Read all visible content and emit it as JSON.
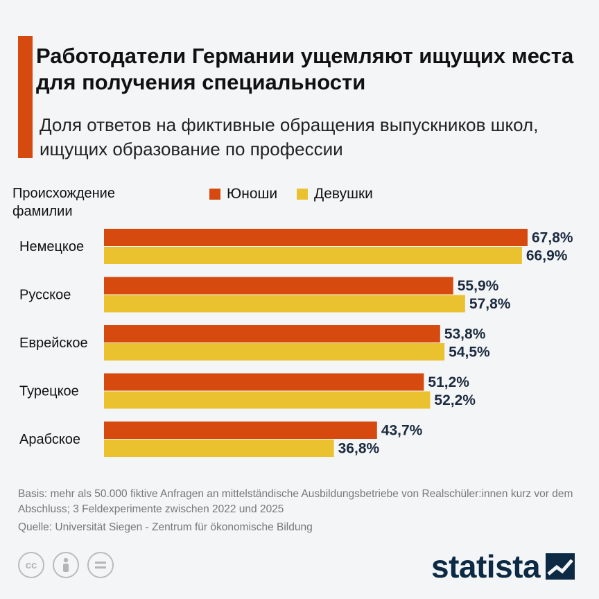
{
  "header": {
    "title": "Работодатели Германии ущемляют ищущих места для получения специальности",
    "subtitle": "Доля ответов на фиктивные обращения выпускников школ, ищущих образование по профессии"
  },
  "chart_data": {
    "type": "bar",
    "orientation": "horizontal",
    "category_axis_label": "Происхождение фамилии",
    "categories": [
      "Немецкое",
      "Русское",
      "Еврейское",
      "Турецкое",
      "Арабское"
    ],
    "series": [
      {
        "name": "Юноши",
        "color": "#d64a10",
        "values": [
          67.8,
          55.9,
          53.8,
          51.2,
          43.7
        ],
        "labels": [
          "67,8%",
          "55,9%",
          "53,8%",
          "51,2%",
          "43,7%"
        ]
      },
      {
        "name": "Девушки",
        "color": "#eac22f",
        "values": [
          66.9,
          57.8,
          54.5,
          52.2,
          36.8
        ],
        "labels": [
          "66,9%",
          "57,8%",
          "54,5%",
          "52,2%",
          "36,8%"
        ]
      }
    ],
    "xlim": [
      0,
      67.8
    ],
    "legend_position": "top",
    "grid": false
  },
  "footer": {
    "basis": "Basis: mehr als 50.000 fiktive Anfragen an mittelständische Ausbildungsbetriebe von Realschüler:innen kurz vor dem Abschluss; 3 Feldexperimente zwischen 2022 und 2025",
    "source": "Quelle: Universität Siegen - Zentrum für ökonomische Bildung",
    "brand": "statista"
  },
  "icons": [
    "cc-icon",
    "person-icon",
    "equals-icon",
    "statista-logo-icon"
  ]
}
